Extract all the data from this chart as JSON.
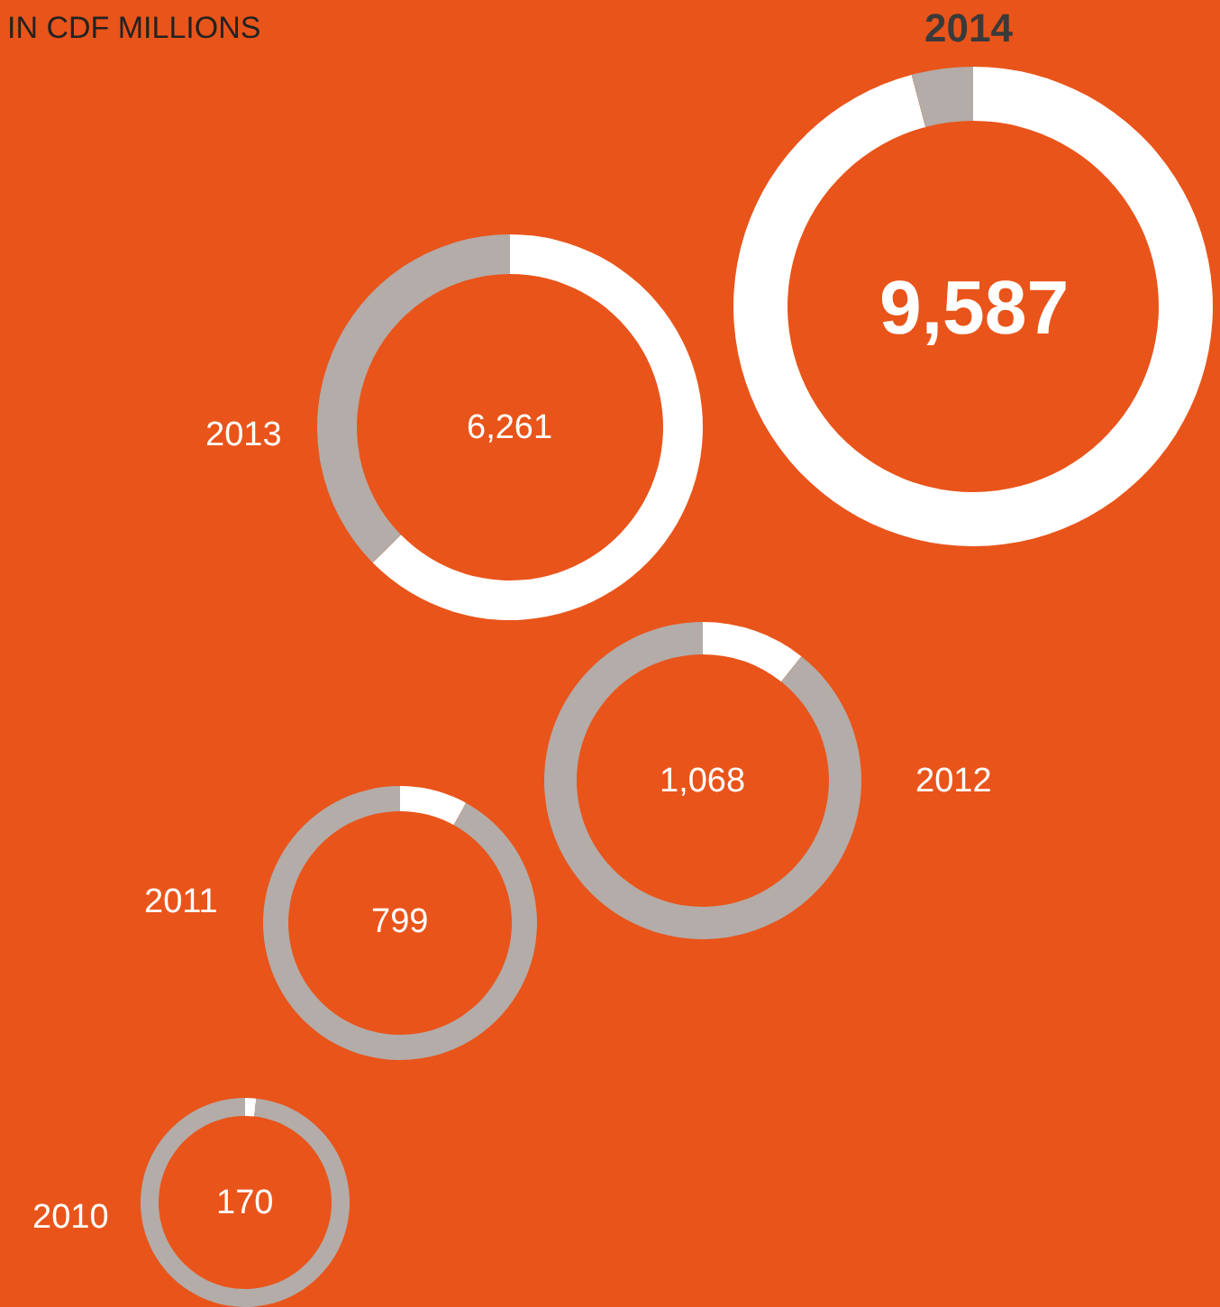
{
  "chart_data": [
    {
      "type": "other",
      "title": "IN CDF MILLIONS"
    },
    {
      "type": "donut",
      "title": "2014",
      "categories": [
        null,
        null
      ],
      "values": [
        95.87,
        4.13
      ],
      "colors": [
        "#ffffff",
        "#b3aca8"
      ],
      "annotations": [
        "9,587"
      ]
    },
    {
      "type": "donut",
      "title": "2013",
      "categories": [
        null,
        null
      ],
      "values": [
        62.61,
        37.39
      ],
      "colors": [
        "#ffffff",
        "#b3aca8"
      ],
      "annotations": [
        "6,261"
      ]
    },
    {
      "type": "donut",
      "title": "2012",
      "categories": [
        null,
        null
      ],
      "values": [
        10.68,
        89.32
      ],
      "colors": [
        "#ffffff",
        "#b3aca8"
      ],
      "annotations": [
        "1,068"
      ]
    },
    {
      "type": "donut",
      "title": "2011",
      "categories": [
        null,
        null
      ],
      "values": [
        7.99,
        92.01
      ],
      "colors": [
        "#ffffff",
        "#b3aca8"
      ],
      "annotations": [
        "799"
      ]
    },
    {
      "type": "donut",
      "title": "2010",
      "categories": [
        null,
        null
      ],
      "values": [
        1.7,
        98.3
      ],
      "colors": [
        "#ffffff",
        "#b3aca8"
      ],
      "annotations": [
        "170"
      ]
    }
  ]
}
